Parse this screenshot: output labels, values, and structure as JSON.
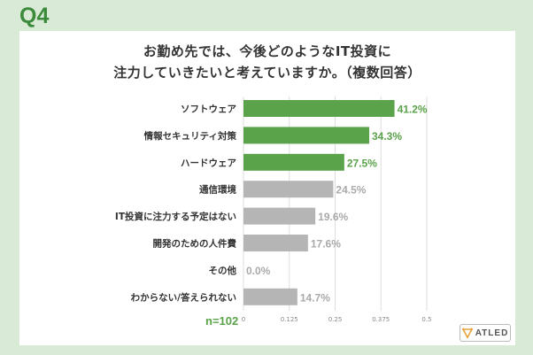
{
  "question_label": "Q4",
  "title_line1": "お勤め先では、今後どのようなIT投資に",
  "title_line2": "注力していきたいと考えていますか。（複数回答）",
  "sample_label": "n=102",
  "logo_text": "ATLED",
  "colors": {
    "highlight": "#5aa34a",
    "other": "#b5b5b5",
    "value_highlight": "#5aa34a",
    "value_other": "#aaaaaa"
  },
  "chart_data": {
    "type": "bar",
    "orientation": "horizontal",
    "categories": [
      "ソフトウェア",
      "情報セキュリティ対策",
      "ハードウェア",
      "通信環境",
      "IT投資に注力する予定はない",
      "開発のための人件費",
      "その他",
      "わからない/答えられない"
    ],
    "values": [
      0.412,
      0.343,
      0.275,
      0.245,
      0.196,
      0.176,
      0.0,
      0.147
    ],
    "value_labels": [
      "41.2%",
      "34.3%",
      "27.5%",
      "24.5%",
      "19.6%",
      "17.6%",
      "0.0%",
      "14.7%"
    ],
    "highlighted": [
      true,
      true,
      true,
      false,
      false,
      false,
      false,
      false
    ],
    "xlim": [
      0,
      0.5
    ],
    "xticks": [
      0,
      0.125,
      0.25,
      0.375,
      0.5
    ],
    "xtick_labels": [
      "0",
      "0.125",
      "0.25",
      "0.375",
      "0.5"
    ],
    "grid": true
  }
}
